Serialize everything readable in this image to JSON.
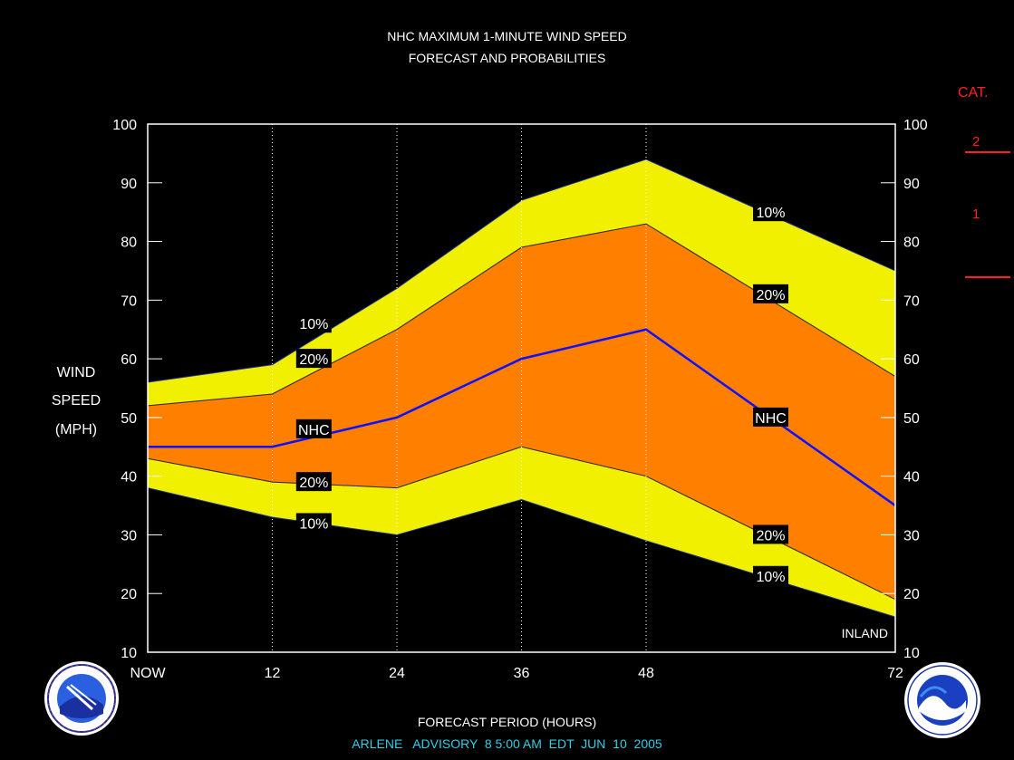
{
  "title_line1": "NHC MAXIMUM 1-MINUTE WIND SPEED",
  "title_line2": "FORECAST AND PROBABILITIES",
  "ylabel_line1": "WIND",
  "ylabel_line2": "SPEED",
  "ylabel_line3": "(MPH)",
  "xlabel": "FORECAST PERIOD (HOURS)",
  "advisory": "ARLENE   ADVISORY  8 5:00 AM  EDT  JUN  10  2005",
  "inland_label": "INLAND",
  "category": {
    "header": "CAT.",
    "cat2": "2",
    "cat1": "1"
  },
  "colors": {
    "outer_band": "#f0f000",
    "inner_band": "#ff8000",
    "nhc_line": "#1010ff",
    "category_text": "#ff2020",
    "footer_text": "#2fd0e8"
  },
  "chart_data": {
    "type": "area",
    "x": [
      0,
      12,
      24,
      36,
      48,
      72
    ],
    "x_tick_labels": [
      "NOW",
      "12",
      "24",
      "36",
      "48",
      "72"
    ],
    "xlim": [
      0,
      72
    ],
    "ylim": [
      10,
      100
    ],
    "y_ticks": [
      10,
      20,
      30,
      40,
      50,
      60,
      70,
      80,
      90,
      100
    ],
    "series": [
      {
        "name": "10%",
        "role": "upper-10",
        "values": [
          56,
          59,
          72,
          87,
          94,
          75
        ]
      },
      {
        "name": "20%",
        "role": "upper-20",
        "values": [
          52,
          54,
          65,
          79,
          83,
          57
        ]
      },
      {
        "name": "NHC",
        "role": "forecast",
        "values": [
          45,
          45,
          50,
          60,
          65,
          35
        ]
      },
      {
        "name": "20%",
        "role": "lower-20",
        "values": [
          43,
          39,
          38,
          45,
          40,
          19
        ]
      },
      {
        "name": "10%",
        "role": "lower-10",
        "values": [
          38,
          33,
          30,
          36,
          29,
          16
        ]
      }
    ],
    "curve_labels": [
      {
        "text": "10%",
        "x": 16,
        "y": 66
      },
      {
        "text": "20%",
        "x": 16,
        "y": 60
      },
      {
        "text": "NHC",
        "x": 16,
        "y": 48
      },
      {
        "text": "20%",
        "x": 16,
        "y": 39
      },
      {
        "text": "10%",
        "x": 16,
        "y": 32
      },
      {
        "text": "10%",
        "x": 60,
        "y": 85
      },
      {
        "text": "20%",
        "x": 60,
        "y": 71
      },
      {
        "text": "NHC",
        "x": 60,
        "y": 50
      },
      {
        "text": "20%",
        "x": 60,
        "y": 30
      },
      {
        "text": "10%",
        "x": 60,
        "y": 23
      }
    ]
  }
}
